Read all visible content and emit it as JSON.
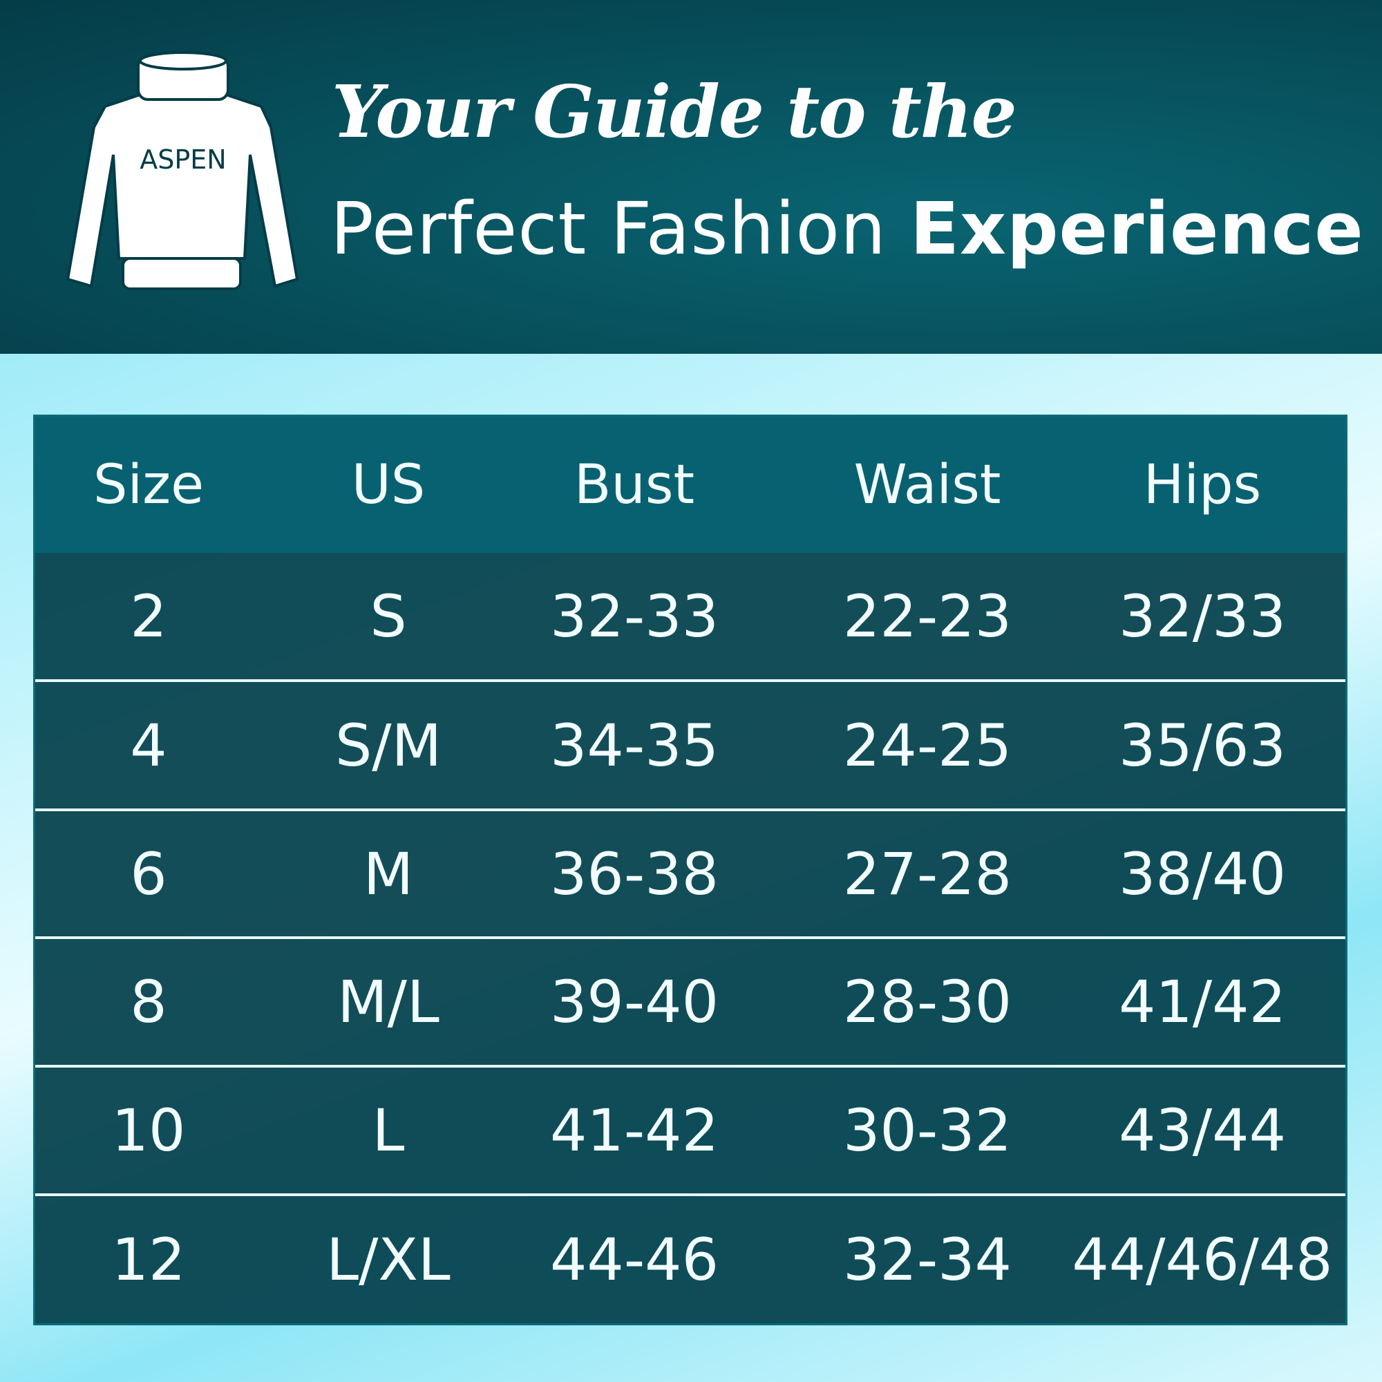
{
  "header": {
    "logo_text": "ASPEN",
    "title_line1": "Your Guide to the",
    "title_line2_regular": "Perfect Fashion",
    "title_line2_bold": "Experience"
  },
  "table": {
    "columns": [
      "Size",
      "US",
      "Bust",
      "Waist",
      "Hips"
    ],
    "rows": [
      [
        "2",
        "S",
        "32-33",
        "22-23",
        "32/33"
      ],
      [
        "4",
        "S/M",
        "34-35",
        "24-25",
        "35/63"
      ],
      [
        "6",
        "M",
        "36-38",
        "27-28",
        "38/40"
      ],
      [
        "8",
        "M/L",
        "39-40",
        "28-30",
        "41/42"
      ],
      [
        "10",
        "L",
        "41-42",
        "30-32",
        "43/44"
      ],
      [
        "12",
        "L/XL",
        "44-46",
        "32-34",
        "44/46/48"
      ]
    ]
  },
  "colors": {
    "header_bg": "#054651",
    "table_bg": "#033f4b",
    "text": "#ffffff"
  }
}
